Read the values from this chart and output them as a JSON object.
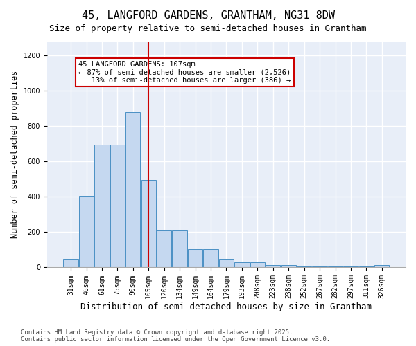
{
  "title": "45, LANGFORD GARDENS, GRANTHAM, NG31 8DW",
  "subtitle": "Size of property relative to semi-detached houses in Grantham",
  "xlabel": "Distribution of semi-detached houses by size in Grantham",
  "ylabel": "Number of semi-detached properties",
  "categories": [
    "31sqm",
    "46sqm",
    "61sqm",
    "75sqm",
    "90sqm",
    "105sqm",
    "120sqm",
    "134sqm",
    "149sqm",
    "164sqm",
    "179sqm",
    "193sqm",
    "208sqm",
    "223sqm",
    "238sqm",
    "252sqm",
    "267sqm",
    "282sqm",
    "297sqm",
    "311sqm",
    "326sqm"
  ],
  "values": [
    50,
    405,
    695,
    695,
    880,
    495,
    210,
    210,
    105,
    105,
    50,
    30,
    30,
    15,
    15,
    5,
    5,
    5,
    5,
    5,
    15
  ],
  "bar_color": "#c5d8f0",
  "bar_edge_color": "#4a90c4",
  "vline_x": 5,
  "vline_color": "#cc0000",
  "annotation_text": "45 LANGFORD GARDENS: 107sqm\n← 87% of semi-detached houses are smaller (2,526)\n   13% of semi-detached houses are larger (386) →",
  "annotation_box_color": "#cc0000",
  "annotation_fontsize": 7.5,
  "background_color": "#e8eef8",
  "grid_color": "#ffffff",
  "footer_text": "Contains HM Land Registry data © Crown copyright and database right 2025.\nContains public sector information licensed under the Open Government Licence v3.0.",
  "ylim": [
    0,
    1280
  ],
  "yticks": [
    0,
    200,
    400,
    600,
    800,
    1000,
    1200
  ],
  "title_fontsize": 11,
  "subtitle_fontsize": 9,
  "xlabel_fontsize": 9,
  "ylabel_fontsize": 8.5,
  "tick_fontsize": 7,
  "footer_fontsize": 6.5
}
